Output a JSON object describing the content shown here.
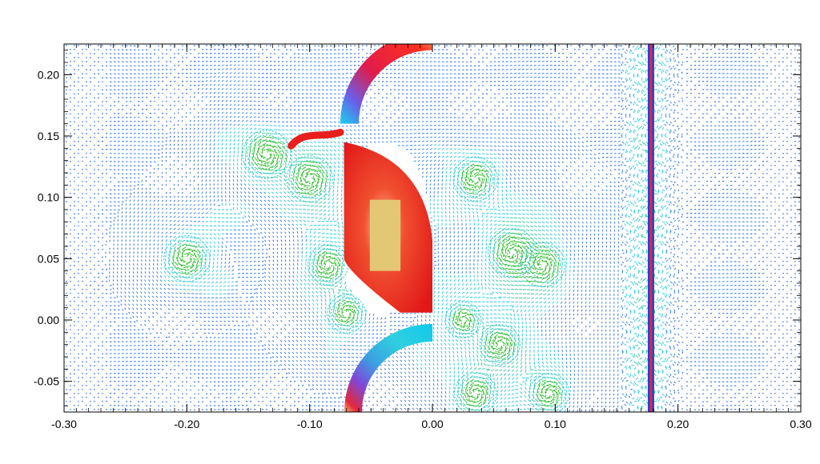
{
  "chart_data": {
    "type": "vector-field",
    "xlim": [
      -0.3,
      0.3
    ],
    "ylim": [
      -0.075,
      0.225
    ],
    "x_ticks": [
      {
        "value": -0.3,
        "label": "-0.30"
      },
      {
        "value": -0.2,
        "label": "-0.20"
      },
      {
        "value": -0.1,
        "label": "-0.10"
      },
      {
        "value": 0.0,
        "label": "0.00"
      },
      {
        "value": 0.1,
        "label": "0.10"
      },
      {
        "value": 0.2,
        "label": "0.20"
      },
      {
        "value": 0.3,
        "label": "0.30"
      }
    ],
    "y_ticks": [
      {
        "value": -0.05,
        "label": "-0.05"
      },
      {
        "value": 0.0,
        "label": "0.00"
      },
      {
        "value": 0.05,
        "label": "0.05"
      },
      {
        "value": 0.1,
        "label": "0.10"
      },
      {
        "value": 0.15,
        "label": "0.15"
      },
      {
        "value": 0.2,
        "label": "0.20"
      }
    ],
    "grid": false,
    "colors": {
      "field_base": "#1a5fd6",
      "field_light": "#6fa8ff",
      "cyan": "#18d6e6",
      "green": "#2fcf2a",
      "red": "#e81e1e",
      "core": "#e2c66f",
      "wall_blue": "#2a3fd8",
      "wall_red": "#e0283a"
    },
    "vortices": [
      {
        "x": -0.2,
        "y": 0.05,
        "strength": 0.9
      },
      {
        "x": -0.135,
        "y": 0.135,
        "strength": 1.0
      },
      {
        "x": -0.1,
        "y": 0.115,
        "strength": 0.9
      },
      {
        "x": -0.085,
        "y": 0.045,
        "strength": 0.6
      },
      {
        "x": -0.07,
        "y": 0.005,
        "strength": 0.5
      },
      {
        "x": 0.035,
        "y": 0.115,
        "strength": 0.8
      },
      {
        "x": 0.065,
        "y": 0.055,
        "strength": 1.0
      },
      {
        "x": 0.09,
        "y": 0.045,
        "strength": 0.8
      },
      {
        "x": 0.055,
        "y": -0.02,
        "strength": 0.6
      },
      {
        "x": 0.035,
        "y": -0.06,
        "strength": 0.7
      },
      {
        "x": 0.095,
        "y": -0.06,
        "strength": 0.6
      },
      {
        "x": 0.025,
        "y": 0.0,
        "strength": 0.4
      }
    ],
    "plasma": {
      "center": [
        -0.04,
        0.075
      ],
      "core_x": [
        -0.051,
        -0.026
      ],
      "core_y": [
        0.04,
        0.098
      ]
    },
    "wall_x": 0.178
  }
}
